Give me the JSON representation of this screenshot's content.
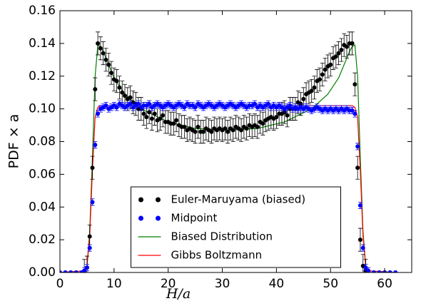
{
  "chart_data": {
    "type": "scatter",
    "xlabel": "H/a",
    "ylabel": "PDF × a",
    "xlim": [
      0,
      65
    ],
    "ylim": [
      0,
      0.16
    ],
    "xticks": [
      0,
      10,
      20,
      30,
      40,
      50,
      60
    ],
    "yticks": [
      {
        "value": 0,
        "label": "0.00"
      },
      {
        "value": 0.02,
        "label": "0.02"
      },
      {
        "value": 0.04,
        "label": "0.04"
      },
      {
        "value": 0.06,
        "label": "0.06"
      },
      {
        "value": 0.08,
        "label": "0.08"
      },
      {
        "value": 0.1,
        "label": "0.10"
      },
      {
        "value": 0.12,
        "label": "0.12"
      },
      {
        "value": 0.14,
        "label": "0.14"
      },
      {
        "value": 0.16,
        "label": "0.16"
      }
    ],
    "legend": "lower center",
    "series": [
      {
        "name": "Euler-Maruyama (biased)",
        "color": "#000000",
        "kind": "points",
        "error": 0.007,
        "x": [
          0,
          1,
          2,
          3,
          4,
          4.5,
          5,
          5.5,
          6,
          6.5,
          7,
          7.5,
          8,
          8.5,
          9,
          9.5,
          10,
          10.5,
          11,
          11.5,
          12,
          12.5,
          13,
          13.5,
          14,
          14.5,
          15,
          15.5,
          16,
          16.5,
          17,
          17.5,
          18,
          18.5,
          19,
          19.5,
          20,
          20.5,
          21,
          21.5,
          22,
          22.5,
          23,
          23.5,
          24,
          24.5,
          25,
          25.5,
          26,
          26.5,
          27,
          27.5,
          28,
          28.5,
          29,
          29.5,
          30,
          30.5,
          31,
          31.5,
          32,
          32.5,
          33,
          33.5,
          34,
          34.5,
          35,
          35.5,
          36,
          36.5,
          37,
          37.5,
          38,
          38.5,
          39,
          39.5,
          40,
          40.5,
          41,
          41.5,
          42,
          42.5,
          43,
          43.5,
          44,
          44.5,
          45,
          45.5,
          46,
          46.5,
          47,
          47.5,
          48,
          48.5,
          49,
          49.5,
          50,
          50.5,
          51,
          51.5,
          52,
          52.5,
          53,
          53.5,
          54,
          54.5,
          55,
          55.5,
          56,
          56.5,
          57,
          58,
          59,
          60,
          61,
          62
        ],
        "values": [
          0,
          0,
          0,
          0,
          0,
          0.001,
          0.003,
          0.022,
          0.064,
          0.112,
          0.14,
          0.137,
          0.134,
          0.13,
          0.127,
          0.122,
          0.118,
          0.117,
          0.113,
          0.11,
          0.108,
          0.106,
          0.107,
          0.104,
          0.103,
          0.1,
          0.1,
          0.097,
          0.095,
          0.098,
          0.094,
          0.097,
          0.093,
          0.094,
          0.096,
          0.092,
          0.092,
          0.091,
          0.091,
          0.093,
          0.09,
          0.089,
          0.089,
          0.087,
          0.088,
          0.087,
          0.086,
          0.089,
          0.086,
          0.086,
          0.088,
          0.087,
          0.086,
          0.088,
          0.087,
          0.088,
          0.087,
          0.088,
          0.086,
          0.088,
          0.087,
          0.089,
          0.088,
          0.087,
          0.089,
          0.088,
          0.09,
          0.089,
          0.09,
          0.089,
          0.092,
          0.091,
          0.093,
          0.094,
          0.095,
          0.094,
          0.095,
          0.097,
          0.097,
          0.098,
          0.096,
          0.1,
          0.1,
          0.1,
          0.104,
          0.103,
          0.106,
          0.109,
          0.11,
          0.111,
          0.113,
          0.117,
          0.118,
          0.121,
          0.124,
          0.126,
          0.127,
          0.131,
          0.132,
          0.134,
          0.136,
          0.139,
          0.138,
          0.14,
          0.14,
          0.115,
          0.064,
          0.02,
          0.004,
          0.001,
          0,
          0,
          0,
          0,
          0,
          0
        ]
      },
      {
        "name": "Midpoint",
        "color": "#0000ff",
        "kind": "points",
        "error": 0.002,
        "x": [
          0,
          1,
          2,
          3,
          4,
          4.5,
          5,
          5.5,
          6,
          6.5,
          7,
          7.5,
          8,
          8.5,
          9,
          9.5,
          10,
          10.5,
          11,
          11.5,
          12,
          12.5,
          13,
          13.5,
          14,
          14.5,
          15,
          15.5,
          16,
          16.5,
          17,
          17.5,
          18,
          18.5,
          19,
          19.5,
          20,
          20.5,
          21,
          21.5,
          22,
          22.5,
          23,
          23.5,
          24,
          24.5,
          25,
          25.5,
          26,
          26.5,
          27,
          27.5,
          28,
          28.5,
          29,
          29.5,
          30,
          30.5,
          31,
          31.5,
          32,
          32.5,
          33,
          33.5,
          34,
          34.5,
          35,
          35.5,
          36,
          36.5,
          37,
          37.5,
          38,
          38.5,
          39,
          39.5,
          40,
          40.5,
          41,
          41.5,
          42,
          42.5,
          43,
          43.5,
          44,
          44.5,
          45,
          45.5,
          46,
          46.5,
          47,
          47.5,
          48,
          48.5,
          49,
          49.5,
          50,
          50.5,
          51,
          51.5,
          52,
          52.5,
          53,
          53.5,
          54,
          54.5,
          55,
          55.5,
          56,
          56.5,
          57,
          58,
          59,
          60,
          61,
          62
        ],
        "values": [
          0,
          0,
          0,
          0,
          0,
          0.001,
          0.003,
          0.015,
          0.043,
          0.078,
          0.097,
          0.1,
          0.101,
          0.102,
          0.1,
          0.101,
          0.102,
          0.101,
          0.103,
          0.102,
          0.101,
          0.102,
          0.103,
          0.101,
          0.102,
          0.103,
          0.101,
          0.102,
          0.102,
          0.103,
          0.101,
          0.102,
          0.103,
          0.102,
          0.101,
          0.102,
          0.103,
          0.102,
          0.101,
          0.102,
          0.103,
          0.102,
          0.101,
          0.103,
          0.102,
          0.102,
          0.101,
          0.103,
          0.102,
          0.101,
          0.102,
          0.103,
          0.102,
          0.101,
          0.102,
          0.103,
          0.102,
          0.101,
          0.102,
          0.103,
          0.102,
          0.101,
          0.102,
          0.103,
          0.102,
          0.101,
          0.102,
          0.102,
          0.103,
          0.101,
          0.102,
          0.101,
          0.102,
          0.103,
          0.101,
          0.102,
          0.101,
          0.102,
          0.101,
          0.1,
          0.101,
          0.102,
          0.1,
          0.101,
          0.1,
          0.101,
          0.1,
          0.101,
          0.1,
          0.099,
          0.1,
          0.101,
          0.1,
          0.099,
          0.1,
          0.099,
          0.1,
          0.099,
          0.1,
          0.099,
          0.1,
          0.099,
          0.1,
          0.099,
          0.099,
          0.097,
          0.077,
          0.041,
          0.015,
          0.003,
          0.001,
          0,
          0,
          0,
          0,
          0
        ]
      },
      {
        "name": "Biased Distribution",
        "color": "#008000",
        "kind": "line",
        "x": [
          0,
          4,
          4.5,
          5,
          5.5,
          6,
          6.5,
          7,
          7.5,
          8,
          10,
          12,
          15,
          20,
          25,
          30.75,
          36.5,
          41.5,
          46.5,
          49.5,
          51.5,
          53.5,
          54,
          54.5,
          55,
          55.5,
          56,
          56.5,
          57,
          62
        ],
        "values": [
          0,
          0,
          0.001,
          0.004,
          0.025,
          0.07,
          0.12,
          0.139,
          0.138,
          0.135,
          0.119,
          0.109,
          0.1,
          0.092,
          0.088,
          0.087,
          0.088,
          0.092,
          0.1,
          0.109,
          0.119,
          0.135,
          0.138,
          0.139,
          0.12,
          0.07,
          0.025,
          0.004,
          0.001,
          0
        ]
      },
      {
        "name": "Gibbs Boltzmann",
        "color": "#ff0000",
        "kind": "line",
        "x": [
          0,
          4.5,
          5,
          5.5,
          6,
          6.5,
          7,
          7.5,
          54,
          54.5,
          55,
          55.5,
          56,
          56.5,
          57,
          62
        ],
        "values": [
          0,
          0.001,
          0.004,
          0.022,
          0.062,
          0.095,
          0.101,
          0.102,
          0.102,
          0.101,
          0.095,
          0.062,
          0.022,
          0.004,
          0.001,
          0
        ]
      }
    ]
  }
}
